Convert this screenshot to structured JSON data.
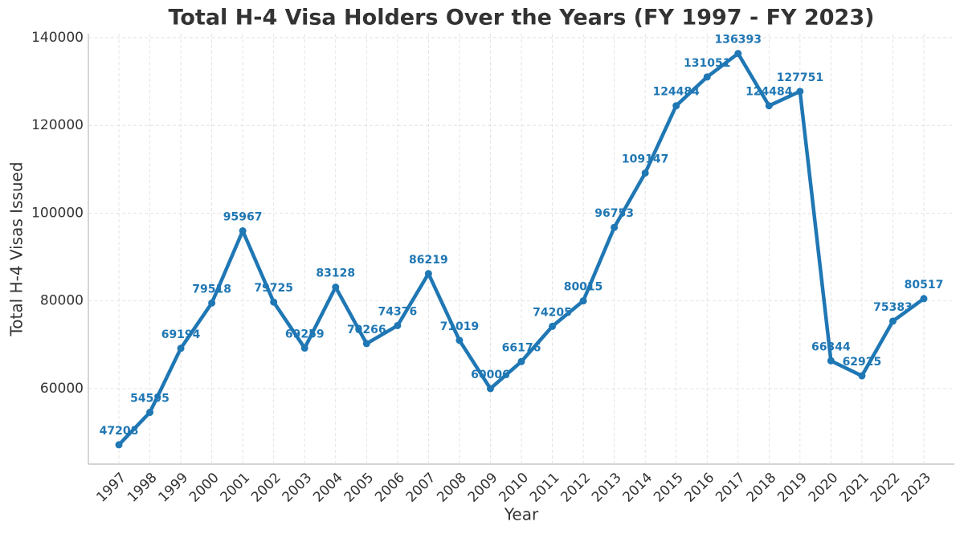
{
  "chart_data": {
    "type": "line",
    "title": "Total H-4 Visa Holders Over the Years (FY 1997 - FY 2023)",
    "x_label": "Year",
    "y_label": "Total H-4 Visas Issued",
    "categories": [
      "1997",
      "1998",
      "1999",
      "2000",
      "2001",
      "2002",
      "2003",
      "2004",
      "2005",
      "2006",
      "2007",
      "2008",
      "2009",
      "2010",
      "2011",
      "2012",
      "2013",
      "2014",
      "2015",
      "2016",
      "2017",
      "2018",
      "2019",
      "2020",
      "2021",
      "2022",
      "2023"
    ],
    "series": [
      {
        "name": "Total H-4 Visas Issued",
        "color": "#1f77b4",
        "values": [
          47208,
          54595,
          69194,
          79518,
          95967,
          79725,
          69259,
          83128,
          70266,
          74376,
          86219,
          71019,
          60006,
          66176,
          74205,
          80015,
          96753,
          109147,
          124484,
          131051,
          136393,
          124484,
          127751,
          66344,
          62925,
          75383,
          80517
        ]
      }
    ],
    "ylim": [
      42800,
      140900
    ],
    "yticks": [
      60000,
      80000,
      100000,
      120000,
      140000
    ],
    "grid": true
  }
}
